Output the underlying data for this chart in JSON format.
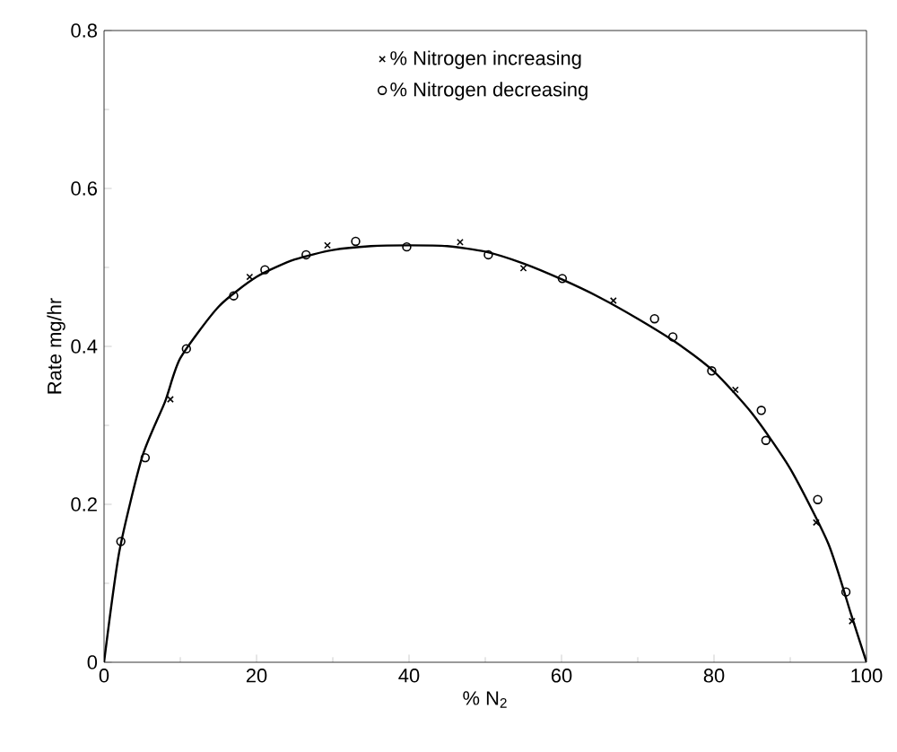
{
  "chart_data": {
    "type": "scatter",
    "xlabel": "% N$_{2}$",
    "ylabel": "Rate mg/hr",
    "xlim": [
      0,
      100
    ],
    "ylim": [
      0,
      0.8
    ],
    "xticks": [
      0,
      20,
      40,
      60,
      80,
      100
    ],
    "yticks": [
      0,
      0.2,
      0.4,
      0.6,
      0.8
    ],
    "legend": "top",
    "grid": false,
    "series": [
      {
        "name": "% Nitrogen increasing",
        "color": "#000000",
        "marker": "cross",
        "x": [
          8.7,
          19.1,
          29.3,
          46.7,
          55.0,
          66.8,
          82.8,
          93.4,
          98.1
        ],
        "values": [
          0.333,
          0.488,
          0.528,
          0.532,
          0.499,
          0.458,
          0.345,
          0.177,
          0.052
        ]
      },
      {
        "name": "% Nitrogen decreasing",
        "color": "#000000",
        "marker": "circle",
        "x": [
          2.2,
          5.4,
          10.8,
          17.0,
          21.1,
          26.5,
          33.0,
          39.7,
          50.4,
          60.1,
          72.2,
          74.6,
          79.7,
          86.2,
          86.8,
          93.6,
          97.3
        ],
        "values": [
          0.153,
          0.259,
          0.397,
          0.464,
          0.497,
          0.516,
          0.533,
          0.526,
          0.516,
          0.486,
          0.435,
          0.412,
          0.369,
          0.319,
          0.281,
          0.206,
          0.089
        ]
      },
      {
        "type": "line",
        "color": "#000000",
        "line_style": "solid",
        "x": [
          0,
          2,
          5,
          8,
          10,
          15,
          20,
          25,
          30,
          35,
          40,
          45,
          50,
          55,
          60,
          65,
          70,
          75,
          80,
          85,
          90,
          95,
          98,
          100
        ],
        "values": [
          0,
          0.14,
          0.26,
          0.33,
          0.385,
          0.45,
          0.488,
          0.51,
          0.522,
          0.527,
          0.528,
          0.527,
          0.52,
          0.505,
          0.485,
          0.462,
          0.435,
          0.405,
          0.368,
          0.315,
          0.245,
          0.15,
          0.06,
          0
        ]
      }
    ]
  }
}
